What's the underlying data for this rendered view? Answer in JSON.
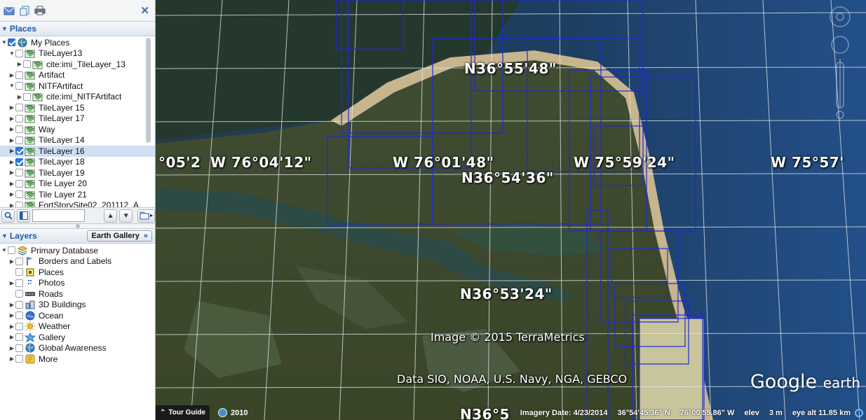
{
  "toolbar": {
    "close_label": "✕"
  },
  "places": {
    "title": "Places",
    "items": [
      {
        "label": "My Places",
        "level": 0,
        "expanded": "open",
        "checked": "none",
        "icon": "globe-icon"
      },
      {
        "label": "TileLayer13",
        "level": 1,
        "expanded": "open",
        "checked": false,
        "icon": "layer-icon"
      },
      {
        "label": "cite:imi_TileLayer_13",
        "level": 2,
        "expanded": "closed",
        "checked": false,
        "icon": "layer-icon"
      },
      {
        "label": "Artifact",
        "level": 1,
        "expanded": "closed",
        "checked": false,
        "icon": "layer-icon"
      },
      {
        "label": "NITFArtifact",
        "level": 1,
        "expanded": "open",
        "checked": false,
        "icon": "layer-icon"
      },
      {
        "label": "cite:imi_NITFArtifact",
        "level": 2,
        "expanded": "closed",
        "checked": false,
        "icon": "layer-icon"
      },
      {
        "label": "TileLayer 15",
        "level": 1,
        "expanded": "closed",
        "checked": false,
        "icon": "layer-icon"
      },
      {
        "label": "TileLayer 17",
        "level": 1,
        "expanded": "closed",
        "checked": false,
        "icon": "layer-icon"
      },
      {
        "label": "Way",
        "level": 1,
        "expanded": "closed",
        "checked": false,
        "icon": "layer-icon"
      },
      {
        "label": "TileLayer 14",
        "level": 1,
        "expanded": "closed",
        "checked": false,
        "icon": "layer-icon"
      },
      {
        "label": "TileLayer 16",
        "level": 1,
        "expanded": "closed",
        "checked": true,
        "icon": "layer-icon",
        "selected": true
      },
      {
        "label": "TileLayer 18",
        "level": 1,
        "expanded": "closed",
        "checked": true,
        "icon": "layer-icon"
      },
      {
        "label": "TileLayer 19",
        "level": 1,
        "expanded": "closed",
        "checked": false,
        "icon": "layer-icon"
      },
      {
        "label": "Tile Layer 20",
        "level": 1,
        "expanded": "closed",
        "checked": false,
        "icon": "layer-icon"
      },
      {
        "label": "Tile Layer 21",
        "level": 1,
        "expanded": "closed",
        "checked": false,
        "icon": "layer-icon"
      },
      {
        "label": "FortStorySite02_201112_A",
        "level": 1,
        "expanded": "closed",
        "checked": false,
        "icon": "layer-icon"
      }
    ]
  },
  "search": {
    "up_label": "▲",
    "down_label": "▼"
  },
  "layers": {
    "title": "Layers",
    "gallery_label": "Earth Gallery",
    "gallery_arrow": "»",
    "items": [
      {
        "label": "Primary Database",
        "level": 0,
        "expanded": "open",
        "checked": false,
        "icon": "database-icon"
      },
      {
        "label": "Borders and Labels",
        "level": 1,
        "expanded": "closed",
        "checked": false,
        "icon": "flag-icon"
      },
      {
        "label": "Places",
        "level": 1,
        "expanded": "none",
        "checked": false,
        "icon": "places-icon"
      },
      {
        "label": "Photos",
        "level": 1,
        "expanded": "closed",
        "checked": false,
        "icon": "photos-icon"
      },
      {
        "label": "Roads",
        "level": 1,
        "expanded": "none",
        "checked": false,
        "icon": "roads-icon"
      },
      {
        "label": "3D Buildings",
        "level": 1,
        "expanded": "closed",
        "checked": false,
        "icon": "buildings-icon"
      },
      {
        "label": "Ocean",
        "level": 1,
        "expanded": "closed",
        "checked": false,
        "icon": "ocean-icon"
      },
      {
        "label": "Weather",
        "level": 1,
        "expanded": "closed",
        "checked": false,
        "icon": "weather-icon"
      },
      {
        "label": "Gallery",
        "level": 1,
        "expanded": "closed",
        "checked": false,
        "icon": "gallery-icon"
      },
      {
        "label": "Global Awareness",
        "level": 1,
        "expanded": "closed",
        "checked": false,
        "icon": "globe-icon"
      },
      {
        "label": "More",
        "level": 1,
        "expanded": "closed",
        "checked": false,
        "icon": "more-icon"
      }
    ]
  },
  "map": {
    "grid_labels": [
      "N36°55'48\"",
      "°05'2",
      "W 76°04'12\"",
      "W 76°01'48\"",
      "N36°54'36\"",
      "W 75°59'24\"",
      "W 75°57'",
      "N36°53'24\"",
      "N36°5"
    ],
    "copyright": "Image © 2015 TerraMetrics",
    "data_credit": "Data SIO, NOAA, U.S. Navy, NGA, GEBCO",
    "logo_google": "Google",
    "logo_earth": "earth"
  },
  "status": {
    "tour_guide": "Tour Guide",
    "historical_year": "2010",
    "imagery_date": "Imagery Date: 4/23/2014",
    "lat": "36°54'45.36\" N",
    "lon": "76°00'55.86\" W",
    "elev_label": "elev",
    "elev_value": "3 m",
    "eye_alt": "eye alt  11.85 km"
  },
  "colors": {
    "overlay_outline": "#1e2ad8",
    "ocean": "#1d3f63",
    "land": "#3d4a2c",
    "accent": "#1f5aa8"
  }
}
